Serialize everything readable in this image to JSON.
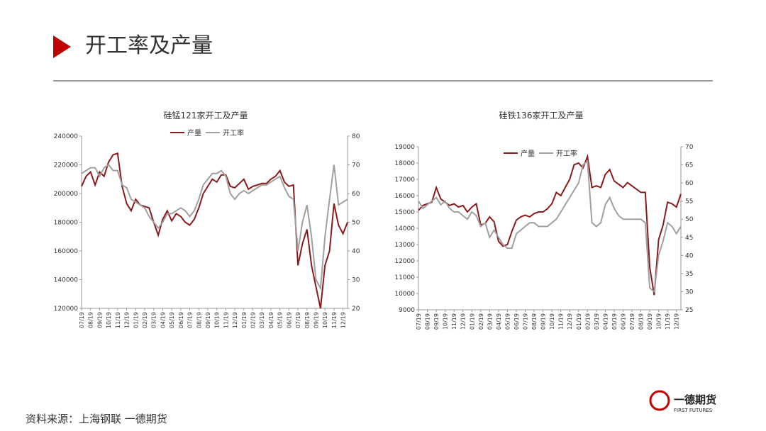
{
  "header": {
    "title": "开工率及产量"
  },
  "source": "资料来源：上海钢联  一德期货",
  "logo": {
    "name": "一德期货",
    "subtitle": "FIRST FUTURES"
  },
  "chart_data": [
    {
      "type": "line",
      "title": "硅锰121家开工及产量",
      "legend": "top",
      "categories": [
        "07/19",
        null,
        "08/19",
        null,
        "09/19",
        null,
        "10/19",
        null,
        "11/19",
        null,
        "12/19",
        null,
        "01/19",
        null,
        "02/19",
        null,
        "03/19",
        null,
        "04/19",
        null,
        "05/19",
        null,
        "06/19",
        null,
        "07/19",
        null,
        "08/19",
        null,
        "09/19",
        null,
        "10/19",
        null,
        "11/19",
        null,
        "12/19",
        null,
        "01/19",
        null,
        "02/19",
        null,
        "03/19",
        null,
        "04/19",
        null,
        "05/19",
        null,
        "06/19",
        null,
        "07/19",
        null,
        "08/19",
        null,
        "09/19",
        null,
        "10/19",
        null,
        "11/19",
        null,
        "12/19",
        null
      ],
      "ylim": [
        120000,
        240000
      ],
      "yticks": [
        120000,
        140000,
        160000,
        180000,
        200000,
        220000,
        240000
      ],
      "y2lim": [
        20,
        80
      ],
      "y2ticks": [
        20,
        30,
        40,
        50,
        60,
        70,
        80
      ],
      "series": [
        {
          "name": "产量",
          "color": "#8b1a1a",
          "values": [
            205000,
            212000,
            215000,
            206000,
            215000,
            212000,
            222000,
            227000,
            228000,
            205000,
            193000,
            188000,
            196000,
            192000,
            191000,
            190000,
            180000,
            171000,
            182000,
            188000,
            181000,
            186000,
            184000,
            180000,
            178000,
            182000,
            190000,
            200000,
            205000,
            210000,
            208000,
            213000,
            213000,
            205000,
            204000,
            207000,
            210000,
            203000,
            205000,
            206000,
            207000,
            207000,
            210000,
            212000,
            216000,
            208000,
            205000,
            206000,
            150000,
            165000,
            175000,
            150000,
            135000,
            120000,
            150000,
            160000,
            193000,
            178000,
            172000,
            180000
          ]
        },
        {
          "name": "开工率",
          "color": "#a0a0a0",
          "axis": "y2",
          "values": [
            67,
            68,
            69,
            69,
            66,
            69,
            70,
            68,
            68,
            63,
            62,
            58,
            57,
            56,
            55,
            52,
            50,
            48,
            50,
            53,
            53,
            54,
            55,
            54,
            52,
            54,
            58,
            63,
            65,
            67,
            67,
            68,
            66,
            60,
            58,
            60,
            61,
            60,
            61,
            62,
            63,
            63,
            64,
            65,
            66,
            62,
            59,
            58,
            40,
            50,
            56,
            45,
            30,
            27,
            45,
            58,
            70,
            56,
            57,
            58
          ]
        }
      ]
    },
    {
      "type": "line",
      "title": "硅铁136家开工及产量",
      "legend": "top",
      "categories": [
        "07/19",
        null,
        "08/19",
        null,
        "09/19",
        null,
        "10/19",
        null,
        "11/19",
        null,
        "12/19",
        null,
        "01/19",
        null,
        "02/19",
        null,
        "03/19",
        null,
        "04/19",
        null,
        "05/19",
        null,
        "06/19",
        null,
        "07/19",
        null,
        "08/19",
        null,
        "09/19",
        null,
        "10/19",
        null,
        "11/19",
        null,
        "12/19",
        null,
        "01/19",
        null,
        "02/19",
        null,
        "03/19",
        null,
        "04/19",
        null,
        "05/19",
        null,
        "06/19",
        null,
        "07/19",
        null,
        "08/19",
        null,
        "09/19",
        null,
        "10/19",
        null,
        "11/19",
        null,
        "12/19",
        null
      ],
      "ylim": [
        9000,
        19000
      ],
      "yticks": [
        9000,
        10000,
        11000,
        12000,
        13000,
        14000,
        15000,
        16000,
        17000,
        18000,
        19000
      ],
      "y2lim": [
        25,
        70
      ],
      "y2ticks": [
        25,
        30,
        35,
        40,
        45,
        50,
        55,
        60,
        65,
        70
      ],
      "series": [
        {
          "name": "产量",
          "color": "#8b1a1a",
          "values": [
            15100,
            15400,
            15500,
            15600,
            16500,
            15800,
            15600,
            15400,
            15500,
            15300,
            15400,
            15000,
            15300,
            15500,
            14200,
            14300,
            14700,
            14400,
            13200,
            12900,
            13000,
            13800,
            14500,
            14700,
            14800,
            14700,
            14900,
            15000,
            15000,
            15200,
            15500,
            16200,
            16000,
            16500,
            17000,
            17900,
            18000,
            17700,
            18400,
            16500,
            16600,
            16500,
            17300,
            17600,
            16900,
            16700,
            16500,
            16800,
            16600,
            16400,
            16200,
            16200,
            11600,
            9900,
            13300,
            14200,
            15600,
            15500,
            15300,
            16100
          ]
        },
        {
          "name": "开工率",
          "color": "#a0a0a0",
          "axis": "y2",
          "values": [
            55,
            53,
            54,
            55,
            56,
            54,
            55,
            53,
            52,
            52,
            51,
            50,
            52,
            51,
            48,
            49,
            45,
            47,
            45,
            43,
            42,
            42,
            46,
            47,
            48,
            49,
            49,
            48,
            48,
            48,
            49,
            50,
            52,
            54,
            56,
            58,
            60,
            65,
            66,
            49,
            48,
            49,
            54,
            56,
            53,
            51,
            50,
            50,
            50,
            50,
            50,
            49,
            31,
            30,
            40,
            44,
            49,
            48,
            46,
            48
          ]
        }
      ]
    }
  ]
}
